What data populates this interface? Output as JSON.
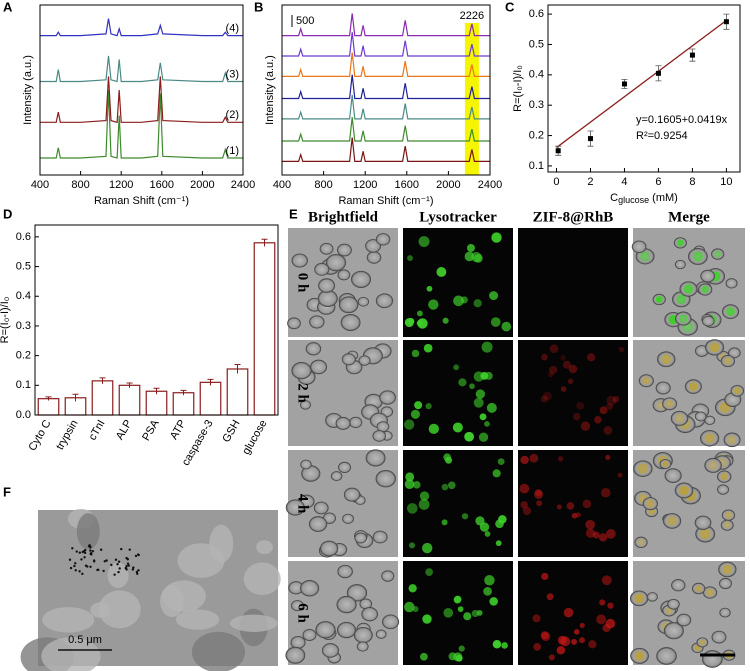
{
  "panel_labels": [
    "A",
    "B",
    "C",
    "D",
    "E",
    "F"
  ],
  "chart_data": [
    {
      "type": "line",
      "x_label": "Raman Shift (cm⁻¹)",
      "y_label": "Intensity (a.u.)",
      "x": [
        400,
        560,
        580,
        600,
        800,
        1050,
        1075,
        1100,
        1160,
        1180,
        1200,
        1400,
        1560,
        1585,
        1610,
        2000,
        2200,
        2226,
        2250,
        2400
      ],
      "xlim": [
        400,
        2400
      ],
      "xticks": [
        400,
        800,
        1200,
        1600,
        2000,
        2400
      ],
      "ylim": [
        0,
        100
      ],
      "series": [
        {
          "name": "(1)",
          "color": "#3d8b2d",
          "values": [
            10,
            10,
            16,
            10,
            10,
            11,
            50,
            11,
            10,
            35,
            10,
            10,
            11,
            48,
            11,
            10,
            10,
            15,
            10,
            10
          ]
        },
        {
          "name": "(2)",
          "color": "#8b1c1c",
          "values": [
            31,
            31,
            37,
            31,
            31,
            32,
            58,
            32,
            31,
            50,
            31,
            31,
            32,
            58,
            32,
            31,
            31,
            34,
            31,
            31
          ]
        },
        {
          "name": "(3)",
          "color": "#4a8a86",
          "values": [
            55,
            55,
            62,
            55,
            55,
            56,
            70,
            56,
            55,
            68,
            55,
            55,
            56,
            66,
            56,
            55,
            55,
            60,
            55,
            55
          ]
        },
        {
          "name": "(4)",
          "color": "#3232c0",
          "values": [
            82,
            82,
            84,
            82,
            82,
            83,
            92,
            83,
            82,
            86,
            82,
            82,
            83,
            88,
            83,
            82,
            82,
            84,
            82,
            82
          ]
        }
      ]
    },
    {
      "type": "line",
      "x_label": "Raman Shift (cm⁻¹)",
      "y_label": "Intensity (a.u.)",
      "x": [
        400,
        560,
        580,
        600,
        800,
        1050,
        1075,
        1100,
        1160,
        1180,
        1200,
        1400,
        1560,
        1585,
        1610,
        2000,
        2200,
        2226,
        2250,
        2400
      ],
      "xlim": [
        400,
        2400
      ],
      "xticks": [
        400,
        800,
        1200,
        1600,
        2000,
        2400
      ],
      "ylim": [
        0,
        100
      ],
      "highlight_x": 2226,
      "scale_bar": 500,
      "series": [
        {
          "color": "#7a1414",
          "values": [
            8,
            8,
            12,
            8,
            8,
            8,
            22,
            8,
            8,
            14,
            8,
            8,
            8,
            17,
            8,
            8,
            8,
            15,
            8,
            8
          ]
        },
        {
          "color": "#3d8b2d",
          "values": [
            20,
            20,
            24,
            20,
            20,
            20,
            34,
            20,
            20,
            26,
            20,
            20,
            20,
            29,
            20,
            20,
            20,
            27,
            20,
            20
          ]
        },
        {
          "color": "#4a8a86",
          "values": [
            33,
            33,
            37,
            33,
            33,
            33,
            47,
            33,
            33,
            39,
            33,
            33,
            33,
            42,
            33,
            33,
            33,
            40,
            33,
            33
          ]
        },
        {
          "color": "#20209a",
          "values": [
            45,
            45,
            49,
            45,
            45,
            45,
            59,
            45,
            45,
            51,
            45,
            45,
            45,
            54,
            45,
            45,
            45,
            52,
            45,
            45
          ]
        },
        {
          "color": "#e8761a",
          "values": [
            58,
            58,
            62,
            58,
            58,
            58,
            72,
            58,
            58,
            64,
            58,
            58,
            58,
            67,
            58,
            58,
            58,
            65,
            58,
            58
          ]
        },
        {
          "color": "#6a3ad0",
          "values": [
            70,
            70,
            74,
            70,
            70,
            70,
            84,
            70,
            70,
            76,
            70,
            70,
            70,
            79,
            70,
            70,
            70,
            77,
            70,
            70
          ]
        },
        {
          "color": "#8a2ab0",
          "values": [
            82,
            82,
            86,
            82,
            82,
            82,
            95,
            82,
            82,
            88,
            82,
            82,
            82,
            91,
            82,
            82,
            82,
            89,
            82,
            82
          ]
        }
      ]
    },
    {
      "type": "scatter",
      "x_label": {
        "text": "C",
        "sub": "glucose",
        "after": " (mM)"
      },
      "y_label": "R=(I₀-I)/I₀",
      "x": [
        0.1,
        2,
        4,
        6,
        8,
        10
      ],
      "values": [
        0.15,
        0.19,
        0.37,
        0.405,
        0.465,
        0.575
      ],
      "error": [
        0.015,
        0.025,
        0.015,
        0.025,
        0.02,
        0.025
      ],
      "xlim": [
        -0.5,
        10.8
      ],
      "xticks": [
        0,
        2,
        4,
        6,
        8,
        10
      ],
      "ylim": [
        0.08,
        0.63
      ],
      "yticks": [
        0.1,
        0.2,
        0.3,
        0.4,
        0.5,
        0.6
      ],
      "fit": {
        "intercept": 0.1605,
        "slope": 0.0419
      },
      "fit_color": "#8b1c1c",
      "equation": "y=0.1605+0.0419x",
      "r_squared": "R²=0.9254"
    },
    {
      "type": "bar",
      "y_label": "R=(I₀-I)/I₀",
      "categories": [
        "Cyto C",
        "trypsin",
        "cTnI",
        "ALP",
        "PSA",
        "ATP",
        "caspase-3",
        "GSH",
        "glucose"
      ],
      "values": [
        0.055,
        0.058,
        0.115,
        0.1,
        0.08,
        0.075,
        0.11,
        0.155,
        0.58
      ],
      "error": [
        0.006,
        0.012,
        0.01,
        0.008,
        0.01,
        0.008,
        0.01,
        0.015,
        0.012
      ],
      "color": "#8b1c1c",
      "ylim": [
        0,
        0.64
      ],
      "yticks": [
        {
          "value": 0,
          "label": "0.0"
        },
        0.1,
        0.2,
        0.3,
        0.4,
        0.5,
        0.6
      ]
    }
  ],
  "imaging": {
    "columns": [
      "Brightfield",
      "Lysotracker",
      "ZIF-8@RhB",
      "Merge"
    ],
    "rows": [
      "0 h",
      "2 h",
      "4 h",
      "6 h"
    ]
  },
  "tem": {
    "scale_bar": "0.5 μm"
  }
}
